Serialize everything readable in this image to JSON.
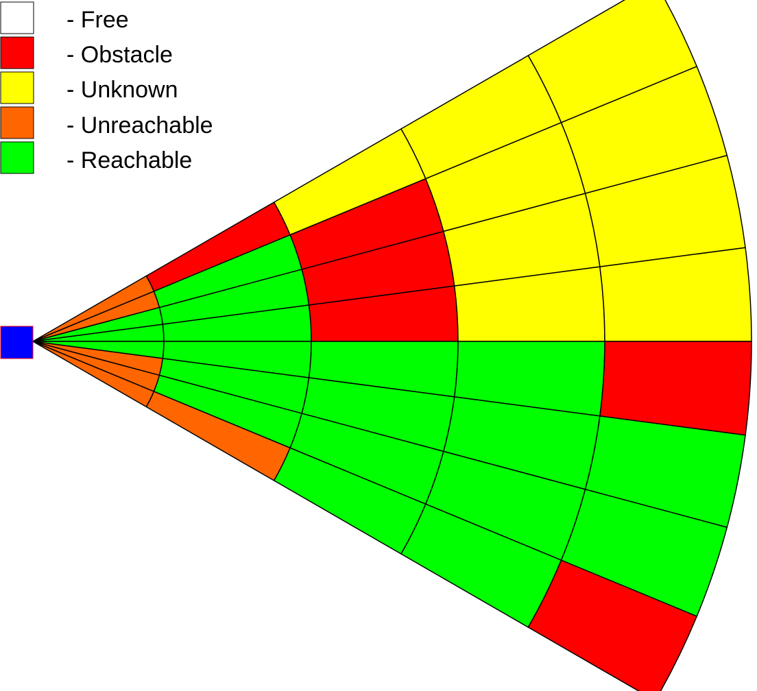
{
  "legend": {
    "items": [
      {
        "key": "free",
        "label": "- Free",
        "color": "#ffffff"
      },
      {
        "key": "obstacle",
        "label": "- Obstacle",
        "color": "#ff0000"
      },
      {
        "key": "unknown",
        "label": "- Unknown",
        "color": "#ffff00"
      },
      {
        "key": "unreachable",
        "label": "- Unreachable",
        "color": "#ff6600"
      },
      {
        "key": "reachable",
        "label": "- Reachable",
        "color": "#00ff00"
      }
    ]
  },
  "sensor": {
    "color": "#0000ff",
    "border_color": "#ff0000"
  },
  "grid": {
    "sectors_top_to_bottom": 8,
    "rings_inner_to_outer": 5,
    "cells": [
      [
        "unreachable",
        "obstacle",
        "unknown",
        "unknown",
        "unknown"
      ],
      [
        "unreachable",
        "reachable",
        "obstacle",
        "unknown",
        "unknown"
      ],
      [
        "reachable",
        "reachable",
        "obstacle",
        "unknown",
        "unknown"
      ],
      [
        "reachable",
        "reachable",
        "obstacle",
        "unknown",
        "unknown"
      ],
      [
        "reachable",
        "reachable",
        "reachable",
        "reachable",
        "obstacle"
      ],
      [
        "unreachable",
        "reachable",
        "reachable",
        "reachable",
        "reachable"
      ],
      [
        "unreachable",
        "reachable",
        "reachable",
        "reachable",
        "reachable"
      ],
      [
        "unreachable",
        "unreachable",
        "reachable",
        "reachable",
        "obstacle"
      ]
    ]
  }
}
